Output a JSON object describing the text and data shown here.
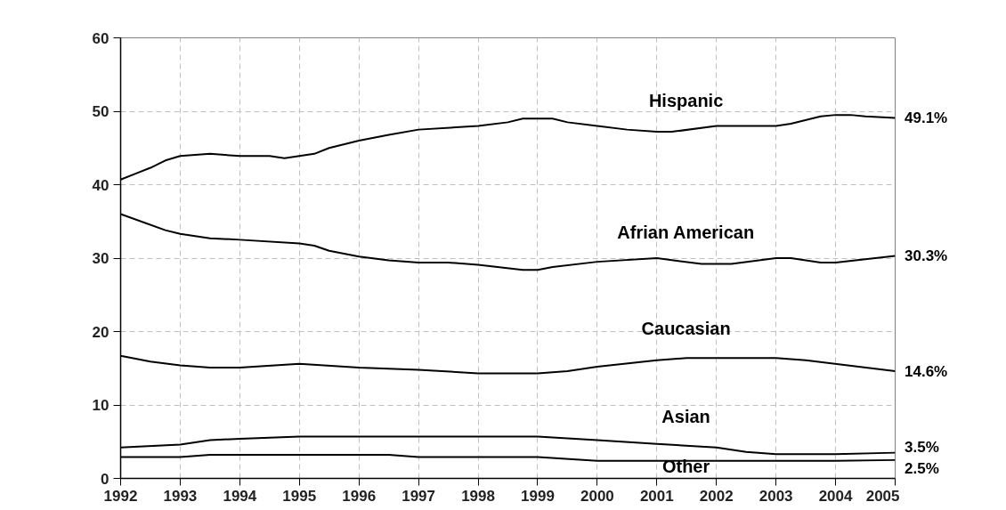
{
  "chart_data": {
    "type": "line",
    "xlim": [
      1992,
      2005
    ],
    "ylim": [
      0,
      60
    ],
    "xticks": [
      1992,
      1993,
      1994,
      1995,
      1996,
      1997,
      1998,
      1999,
      2000,
      2001,
      2002,
      2003,
      2004,
      2005
    ],
    "yticks": [
      0,
      10,
      20,
      30,
      40,
      50,
      60
    ],
    "grid": true,
    "series": [
      {
        "name": "Hispanic",
        "color": "#000000",
        "x": [
          1992,
          1992.25,
          1992.5,
          1992.75,
          1993,
          1993.5,
          1994,
          1994.5,
          1994.75,
          1995,
          1995.25,
          1995.5,
          1996,
          1996.5,
          1997,
          1998,
          1998.5,
          1998.75,
          1999.25,
          1999.5,
          2000,
          2000.5,
          2001,
          2001.25,
          2002,
          2003,
          2003.25,
          2003.75,
          2004,
          2004.25,
          2004.5,
          2005
        ],
        "values": [
          40.7,
          41.5,
          42.3,
          43.3,
          43.9,
          44.2,
          43.9,
          43.9,
          43.6,
          43.9,
          44.2,
          45,
          46,
          46.8,
          47.5,
          48,
          48.5,
          49,
          49,
          48.5,
          48,
          47.5,
          47.2,
          47.2,
          48,
          48,
          48.3,
          49.3,
          49.5,
          49.5,
          49.3,
          49.1
        ],
        "value_labels": [
          null,
          null,
          null,
          null,
          null,
          null,
          null,
          null,
          null,
          null,
          null,
          null,
          null,
          null,
          null,
          null,
          null,
          null,
          null,
          null,
          null,
          null,
          null,
          null,
          null,
          null,
          null,
          null,
          null,
          null,
          null,
          "49.1%"
        ]
      },
      {
        "name": "Afrian American",
        "color": "#000000",
        "x": [
          1992,
          1992.75,
          1993,
          1993.5,
          1994,
          1995,
          1995.25,
          1995.5,
          1996,
          1996.5,
          1997,
          1997.5,
          1998,
          1998.75,
          1999,
          1999.25,
          2000,
          2001,
          2001.75,
          2002.25,
          2003,
          2003.25,
          2003.75,
          2004,
          2005
        ],
        "values": [
          36,
          33.8,
          33.3,
          32.7,
          32.5,
          32,
          31.7,
          31,
          30.2,
          29.7,
          29.4,
          29.4,
          29.1,
          28.4,
          28.4,
          28.8,
          29.5,
          30,
          29.2,
          29.2,
          30,
          30,
          29.4,
          29.4,
          30.3
        ],
        "value_labels": [
          null,
          null,
          null,
          null,
          null,
          null,
          null,
          null,
          null,
          null,
          null,
          null,
          null,
          null,
          null,
          null,
          null,
          null,
          null,
          null,
          null,
          null,
          null,
          null,
          "30.3%"
        ]
      },
      {
        "name": "Caucasian",
        "color": "#000000",
        "x": [
          1992,
          1992.5,
          1993,
          1993.5,
          1994,
          1995,
          1996,
          1997,
          1998,
          1999,
          1999.5,
          2000,
          2001,
          2001.5,
          2003,
          2003.5,
          2005
        ],
        "values": [
          16.7,
          15.9,
          15.4,
          15.1,
          15.1,
          15.6,
          15.1,
          14.8,
          14.3,
          14.3,
          14.6,
          15.2,
          16.1,
          16.4,
          16.4,
          16.1,
          14.6
        ],
        "value_labels": [
          null,
          null,
          null,
          null,
          null,
          null,
          null,
          null,
          null,
          null,
          null,
          null,
          null,
          null,
          null,
          null,
          "14.6%"
        ]
      },
      {
        "name": "Asian",
        "color": "#000000",
        "x": [
          1992,
          1993,
          1993.5,
          1994,
          1995,
          1999,
          2000,
          2001,
          2002,
          2002.5,
          2003,
          2004,
          2005
        ],
        "values": [
          4.2,
          4.6,
          5.2,
          5.4,
          5.7,
          5.7,
          5.2,
          4.7,
          4.2,
          3.6,
          3.3,
          3.3,
          3.5
        ],
        "value_labels": [
          null,
          null,
          null,
          null,
          null,
          null,
          null,
          null,
          null,
          null,
          null,
          null,
          "3.5%"
        ]
      },
      {
        "name": "Other",
        "color": "#000000",
        "x": [
          1992,
          1993,
          1993.5,
          1996.5,
          1997,
          1999,
          2000,
          2004,
          2005
        ],
        "values": [
          2.9,
          2.9,
          3.2,
          3.2,
          2.9,
          2.9,
          2.4,
          2.4,
          2.5
        ],
        "value_labels": [
          null,
          null,
          null,
          null,
          null,
          null,
          null,
          null,
          "2.5%"
        ]
      }
    ]
  }
}
